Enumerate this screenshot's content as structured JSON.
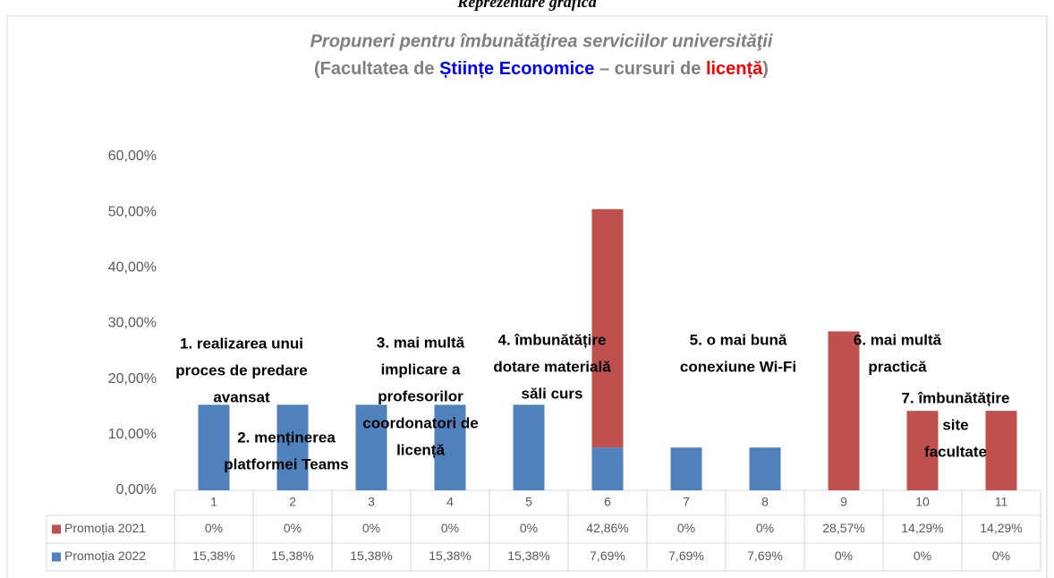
{
  "heading": "Reprezentare grafică",
  "chart_data": {
    "type": "stacked_bar",
    "title": "Propuneri pentru îmbunătăţirea  serviciilor universităţii",
    "subtitle_parts": [
      "(Facultatea de ",
      "Științe Economice",
      " – cursuri de ",
      "licență",
      ")"
    ],
    "categories": [
      "1",
      "2",
      "3",
      "4",
      "5",
      "6",
      "7",
      "8",
      "9",
      "10",
      "11"
    ],
    "series": [
      {
        "name": "Promoția 2021",
        "color": "#c0504d",
        "values": [
          0,
          0,
          0,
          0,
          0,
          42.86,
          0,
          0,
          28.57,
          14.29,
          14.29
        ],
        "value_labels": [
          "0%",
          "0%",
          "0%",
          "0%",
          "0%",
          "42,86%",
          "0%",
          "0%",
          "28,57%",
          "14,29%",
          "14,29%"
        ]
      },
      {
        "name": "Promoția 2022",
        "color": "#4f81bd",
        "values": [
          15.38,
          15.38,
          15.38,
          15.38,
          15.38,
          7.69,
          7.69,
          7.69,
          0,
          0,
          0
        ],
        "value_labels": [
          "15,38%",
          "15,38%",
          "15,38%",
          "15,38%",
          "15,38%",
          "7,69%",
          "7,69%",
          "7,69%",
          "0%",
          "0%",
          "0%"
        ]
      }
    ],
    "ylim": [
      0,
      60
    ],
    "yticks": [
      {
        "value": 0,
        "label": "0,00%"
      },
      {
        "value": 10,
        "label": "10,00%"
      },
      {
        "value": 20,
        "label": "20,00%"
      },
      {
        "value": 30,
        "label": "30,00%"
      },
      {
        "value": 40,
        "label": "40,00%"
      },
      {
        "value": 50,
        "label": "50,00%"
      },
      {
        "value": 60,
        "label": "60,00%"
      }
    ],
    "annotations": [
      [
        "1. realizarea unui",
        "proces de predare",
        "avansat"
      ],
      [
        "2. menținerea",
        "platformei Teams"
      ],
      [
        "3. mai multă",
        "implicare a",
        "profesorilor",
        "coordonatori de",
        "licență"
      ],
      [
        "4. îmbunătățire",
        "dotare materială",
        "săli curs"
      ],
      [
        "5. o mai bună",
        "conexiune Wi-Fi"
      ],
      [
        "6. mai multă",
        "practică"
      ],
      [
        "7. îmbunătățire",
        "site",
        "facultate"
      ]
    ]
  }
}
